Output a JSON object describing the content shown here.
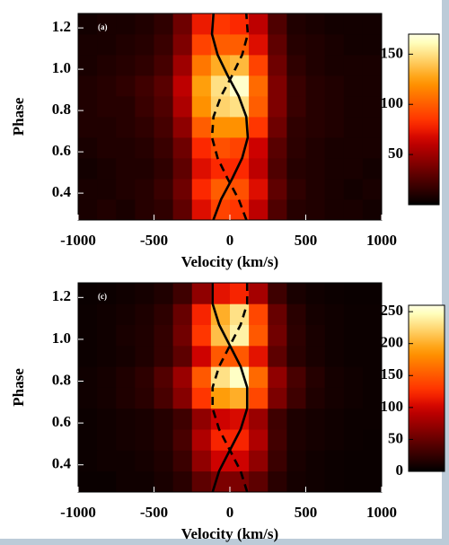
{
  "chart_data": [
    {
      "type": "heatmap",
      "title": "(a)",
      "xlabel": "Velocity (km/s)",
      "ylabel": "Phase",
      "x": [
        -937.5,
        -812.5,
        -687.5,
        -562.5,
        -437.5,
        -312.5,
        -187.5,
        -62.5,
        62.5,
        187.5,
        312.5,
        437.5,
        562.5,
        687.5,
        812.5,
        937.5
      ],
      "y": [
        0.32,
        0.42,
        0.52,
        0.62,
        0.72,
        0.82,
        0.92,
        1.02,
        1.12,
        1.22
      ],
      "values": [
        [
          8,
          10,
          8,
          12,
          15,
          30,
          70,
          90,
          85,
          60,
          25,
          12,
          10,
          8,
          8,
          6
        ],
        [
          8,
          8,
          10,
          12,
          18,
          35,
          80,
          100,
          95,
          70,
          30,
          15,
          10,
          8,
          6,
          8
        ],
        [
          6,
          8,
          10,
          10,
          15,
          30,
          70,
          80,
          80,
          60,
          25,
          12,
          10,
          8,
          8,
          6
        ],
        [
          8,
          10,
          10,
          12,
          18,
          35,
          80,
          95,
          90,
          65,
          28,
          14,
          10,
          8,
          8,
          8
        ],
        [
          10,
          10,
          12,
          15,
          22,
          45,
          100,
          120,
          120,
          85,
          35,
          15,
          12,
          10,
          8,
          8
        ],
        [
          10,
          12,
          12,
          18,
          25,
          55,
          120,
          145,
          150,
          100,
          40,
          18,
          12,
          10,
          8,
          8
        ],
        [
          10,
          12,
          15,
          20,
          28,
          60,
          125,
          150,
          165,
          105,
          40,
          18,
          12,
          10,
          8,
          8
        ],
        [
          8,
          10,
          12,
          15,
          22,
          50,
          110,
          130,
          135,
          90,
          35,
          15,
          10,
          8,
          8,
          8
        ],
        [
          8,
          8,
          10,
          12,
          18,
          40,
          90,
          100,
          100,
          70,
          30,
          12,
          10,
          8,
          6,
          6
        ],
        [
          6,
          8,
          8,
          10,
          15,
          35,
          75,
          85,
          80,
          60,
          25,
          10,
          8,
          6,
          6,
          6
        ]
      ],
      "xlim": [
        -1000,
        1000
      ],
      "ylim": [
        0.27,
        1.27
      ],
      "xticks": [
        -1000,
        -500,
        0,
        500,
        1000
      ],
      "yticks": [
        0.4,
        0.6,
        0.8,
        {
          "value": 1,
          "label": "1.0"
        },
        1.2
      ],
      "clim": [
        0,
        170
      ],
      "cticks": [
        50,
        100,
        150
      ],
      "curves": [
        {
          "style": "solid",
          "color": "#000000",
          "x": [
            -109,
            -58,
            15,
            81,
            118,
            108,
            58,
            -15,
            -81,
            -118,
            -108
          ],
          "y": [
            0.27,
            0.37,
            0.47,
            0.57,
            0.67,
            0.77,
            0.87,
            0.97,
            1.07,
            1.17,
            1.27
          ]
        },
        {
          "style": "dashed",
          "color": "#000000",
          "x": [
            109,
            58,
            -15,
            -81,
            -118,
            -108,
            -58,
            15,
            81,
            118,
            108
          ],
          "y": [
            0.27,
            0.37,
            0.47,
            0.57,
            0.67,
            0.77,
            0.87,
            0.97,
            1.07,
            1.17,
            1.27
          ]
        }
      ]
    },
    {
      "type": "heatmap",
      "title": "(c)",
      "xlabel": "Velocity (km/s)",
      "ylabel": "Phase",
      "x": [
        -937.5,
        -812.5,
        -687.5,
        -562.5,
        -437.5,
        -312.5,
        -187.5,
        -62.5,
        62.5,
        187.5,
        312.5,
        437.5,
        562.5,
        687.5,
        812.5,
        937.5
      ],
      "y": [
        0.32,
        0.42,
        0.52,
        0.62,
        0.72,
        0.82,
        0.92,
        1.02,
        1.12,
        1.22
      ],
      "values": [
        [
          5,
          5,
          8,
          8,
          12,
          20,
          45,
          60,
          60,
          45,
          20,
          10,
          8,
          6,
          5,
          5
        ],
        [
          6,
          8,
          8,
          10,
          15,
          28,
          70,
          100,
          100,
          70,
          28,
          12,
          8,
          6,
          5,
          5
        ],
        [
          6,
          8,
          10,
          12,
          18,
          35,
          85,
          120,
          120,
          85,
          32,
          14,
          10,
          8,
          6,
          5
        ],
        [
          6,
          8,
          10,
          12,
          18,
          30,
          70,
          100,
          105,
          75,
          30,
          14,
          10,
          8,
          6,
          6
        ],
        [
          8,
          10,
          15,
          20,
          35,
          65,
          130,
          190,
          200,
          140,
          60,
          30,
          15,
          10,
          8,
          6
        ],
        [
          8,
          10,
          15,
          22,
          40,
          75,
          150,
          230,
          250,
          160,
          70,
          35,
          18,
          10,
          8,
          6
        ],
        [
          6,
          8,
          10,
          15,
          25,
          45,
          100,
          150,
          150,
          110,
          45,
          20,
          12,
          8,
          6,
          6
        ],
        [
          6,
          8,
          12,
          15,
          25,
          55,
          130,
          210,
          240,
          150,
          55,
          22,
          12,
          8,
          6,
          6
        ],
        [
          6,
          8,
          10,
          14,
          22,
          50,
          120,
          200,
          230,
          140,
          50,
          20,
          10,
          8,
          6,
          6
        ],
        [
          5,
          6,
          8,
          10,
          15,
          30,
          70,
          110,
          120,
          80,
          30,
          12,
          8,
          6,
          5,
          5
        ]
      ],
      "xlim": [
        -1000,
        1000
      ],
      "ylim": [
        0.27,
        1.27
      ],
      "xticks": [
        -1000,
        -500,
        0,
        500,
        1000
      ],
      "yticks": [
        0.4,
        0.6,
        0.8,
        {
          "value": 1,
          "label": "1.0"
        },
        1.2
      ],
      "clim": [
        0,
        260
      ],
      "cticks": [
        0,
        50,
        100,
        150,
        200,
        250
      ],
      "curves": [
        {
          "style": "solid",
          "color": "#000000",
          "x": [
            -114,
            -71,
            0,
            71,
            114,
            114,
            71,
            0,
            -71,
            -114,
            -114
          ],
          "y": [
            0.27,
            0.37,
            0.47,
            0.57,
            0.67,
            0.77,
            0.87,
            0.97,
            1.07,
            1.17,
            1.27
          ]
        },
        {
          "style": "dashed",
          "color": "#000000",
          "x": [
            114,
            71,
            0,
            -71,
            -114,
            -114,
            -71,
            0,
            71,
            114,
            114
          ],
          "y": [
            0.27,
            0.37,
            0.47,
            0.57,
            0.67,
            0.77,
            0.87,
            0.97,
            1.07,
            1.17,
            1.27
          ]
        }
      ]
    }
  ]
}
